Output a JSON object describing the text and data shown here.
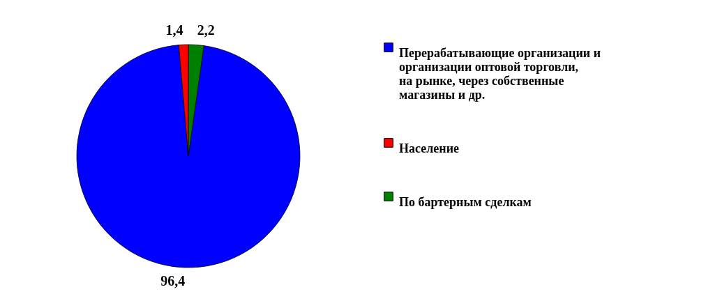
{
  "chart_data": {
    "type": "pie",
    "categories": [
      "Перерабатывающие организации и организации оптовой торговли, на рынке, через собственные магазины и др.",
      "Население",
      "По бартерным сделкам"
    ],
    "values": [
      96.4,
      1.4,
      2.2
    ],
    "colors": [
      "#0000ff",
      "#ff0000",
      "#008000"
    ],
    "value_labels": [
      "96,4",
      "1,4",
      "2,2"
    ],
    "legend": "right"
  }
}
